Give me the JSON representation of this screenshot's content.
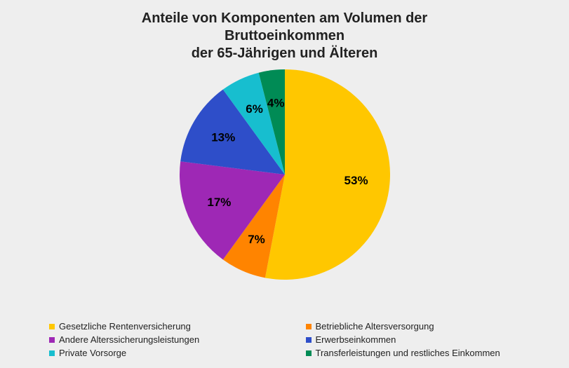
{
  "chart": {
    "type": "pie",
    "background_color": "#eeeeee",
    "title_lines": [
      "Anteile von Komponenten am Volumen der",
      "Bruttoeinkommen",
      "der 65-Jährigen und Älteren"
    ],
    "title_fontsize": 20,
    "title_fontweight": 600,
    "pie_radius": 150,
    "label_fontsize": 17,
    "label_radius_factor": 0.68,
    "start_angle_deg": -90,
    "direction": "clockwise",
    "slices": [
      {
        "label": "Gesetzliche Rentenversicherung",
        "value": 53,
        "display": "53%",
        "color": "#ffc700"
      },
      {
        "label": "Betriebliche Altersversorgung",
        "value": 7,
        "display": "7%",
        "color": "#ff8400"
      },
      {
        "label": "Andere Alterssicherungsleistungen",
        "value": 17,
        "display": "17%",
        "color": "#9e28b5"
      },
      {
        "label": "Erwerbseinkommen",
        "value": 13,
        "display": "13%",
        "color": "#2e4ec9"
      },
      {
        "label": "Private Vorsorge",
        "value": 6,
        "display": "6%",
        "color": "#17becf"
      },
      {
        "label": "Transferleistungen und restliches Einkommen",
        "value": 4,
        "display": "4%",
        "color": "#008b55"
      }
    ],
    "legend_fontsize": 13,
    "legend_swatch_size": 8
  }
}
